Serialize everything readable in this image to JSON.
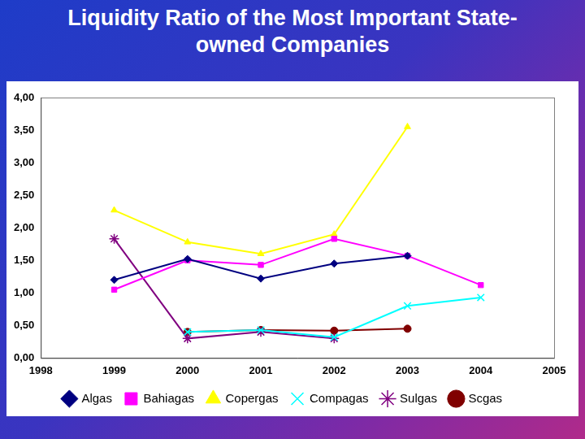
{
  "chart_data": {
    "type": "line",
    "title": "Liquidity Ratio of the Most Important State-owned Companies",
    "x": [
      1999,
      2000,
      2001,
      2002,
      2003,
      2004
    ],
    "series": [
      {
        "name": "Algas",
        "color": "#000080",
        "marker": "diamond",
        "values": [
          1.2,
          1.52,
          1.22,
          1.45,
          1.57,
          null
        ]
      },
      {
        "name": "Bahiagas",
        "color": "#ff00ff",
        "marker": "square",
        "values": [
          1.05,
          1.5,
          1.43,
          1.83,
          1.57,
          1.12
        ]
      },
      {
        "name": "Copergas",
        "color": "#ffff00",
        "marker": "triangle",
        "values": [
          2.27,
          1.78,
          1.6,
          1.9,
          3.55,
          null
        ]
      },
      {
        "name": "Compagas",
        "color": "#00ffff",
        "marker": "x",
        "values": [
          null,
          0.4,
          0.43,
          0.32,
          0.8,
          0.93
        ]
      },
      {
        "name": "Sulgas",
        "color": "#800080",
        "marker": "star",
        "values": [
          1.83,
          0.3,
          0.4,
          0.3,
          null,
          null
        ]
      },
      {
        "name": "Scgas",
        "color": "#800000",
        "marker": "circle",
        "values": [
          null,
          0.4,
          0.43,
          0.42,
          0.45,
          null
        ]
      }
    ],
    "xlim": [
      1998,
      2005
    ],
    "xticks": [
      1998,
      1999,
      2000,
      2001,
      2002,
      2003,
      2004,
      2005
    ],
    "ylim": [
      0,
      4
    ],
    "yticks": [
      {
        "value": 0,
        "label": "0,00"
      },
      {
        "value": 0.5,
        "label": "0,50"
      },
      {
        "value": 1,
        "label": "1,00"
      },
      {
        "value": 1.5,
        "label": "1,50"
      },
      {
        "value": 2,
        "label": "2,00"
      },
      {
        "value": 2.5,
        "label": "2,50"
      },
      {
        "value": 3,
        "label": "3,00"
      },
      {
        "value": 3.5,
        "label": "3,50"
      },
      {
        "value": 4,
        "label": "4,00"
      }
    ],
    "grid": false,
    "legend": "bottom"
  }
}
